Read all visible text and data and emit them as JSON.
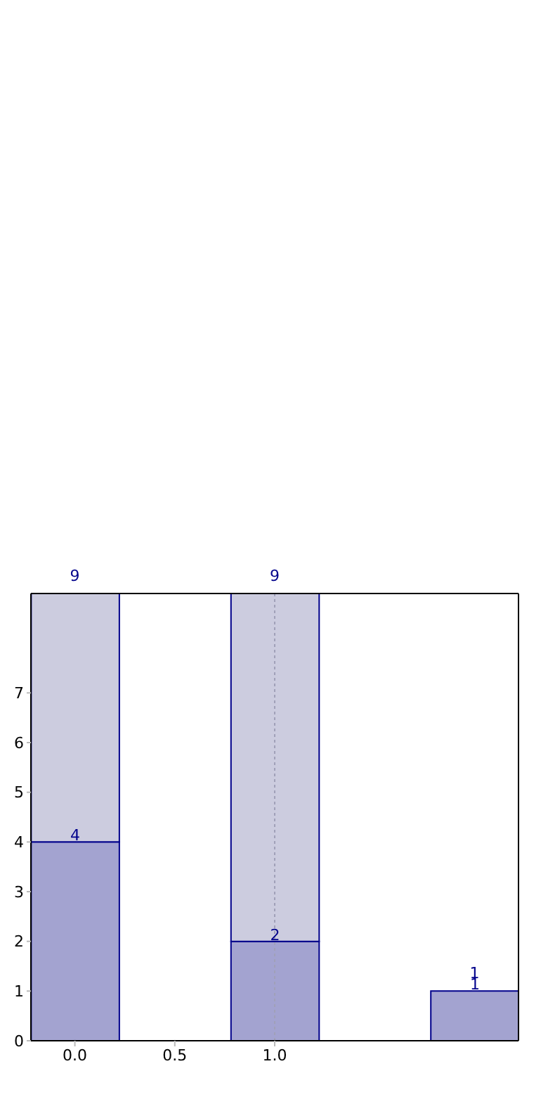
{
  "chart_data": {
    "type": "bar",
    "x": [
      0,
      1,
      2
    ],
    "stacked": true,
    "series": [
      {
        "color": "#a3a3d0",
        "values": [
          4,
          2,
          1
        ],
        "value_labels": [
          "4",
          "2",
          "1"
        ]
      },
      {
        "color": "#ccccdf",
        "values": [
          5,
          7,
          0
        ]
      }
    ],
    "totals": [
      "9",
      "9",
      "1"
    ],
    "xlim": [
      -0.22,
      2.22
    ],
    "xticks": [
      {
        "value": 0,
        "label": "0.0"
      },
      {
        "value": 0.5,
        "label": "0.5"
      },
      {
        "value": 1,
        "label": "1.0"
      }
    ],
    "ylim": [
      0,
      9
    ],
    "yticks": [
      0,
      1,
      2,
      3,
      4,
      5,
      6,
      7
    ],
    "ref_lines": [
      {
        "axis": "x",
        "value": 1,
        "color": "#a0a0b8",
        "line_style": "dotted"
      }
    ],
    "grid": false
  }
}
